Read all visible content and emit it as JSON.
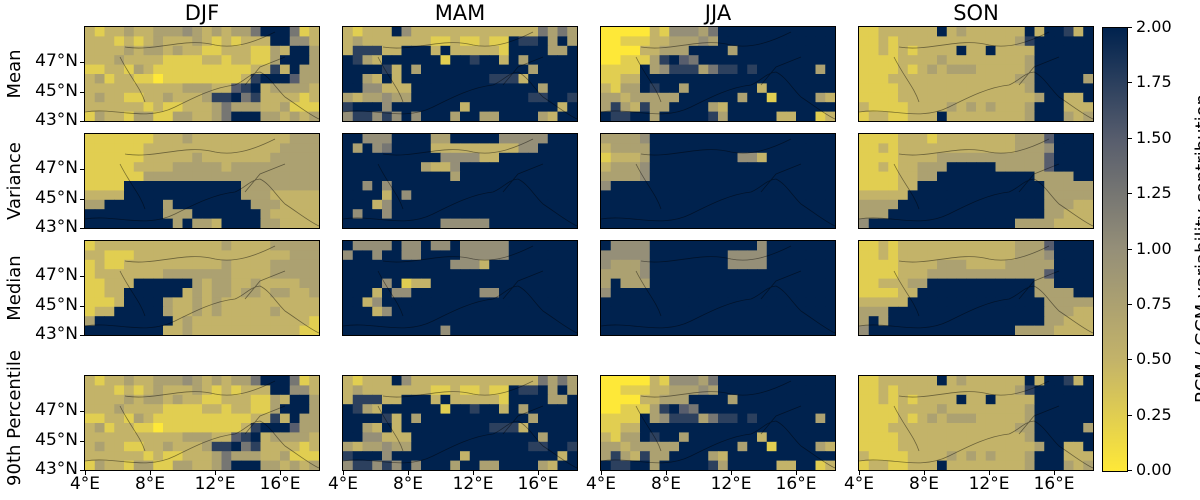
{
  "chart_data": {
    "type": "heatmap",
    "title": "",
    "columns": [
      "DJF",
      "MAM",
      "JJA",
      "SON"
    ],
    "rows": [
      "Mean",
      "Variance",
      "Median",
      "90th Percentile"
    ],
    "xlabel": "",
    "ylabel": "",
    "x_ticks": [
      "4°E",
      "8°E",
      "12°E",
      "16°E"
    ],
    "y_ticks": [
      "47°N",
      "45°N",
      "43°N"
    ],
    "colorbar": {
      "label": "RCM / GCM variability contribution",
      "ticks": [
        "0.00",
        "0.25",
        "0.50",
        "0.75",
        "1.00",
        "1.25",
        "1.50",
        "1.75",
        "2.00"
      ],
      "range": [
        0,
        2
      ],
      "colormap": "cividis_r",
      "colors": [
        "#fee838",
        "#c3b369",
        "#958f78",
        "#575d6d",
        "#00224e"
      ]
    },
    "grid_encoding": "each panel is 10 rows (north to south) x 24 cols (west to east); digit d -> value d*0.25",
    "panels": {
      "Mean": {
        "DJF": [
          "212232233343232335888512",
          "222121232223212122288442",
          "222232332322112221132883",
          "222322221111221221138883",
          "112213211111111112272833",
          "231221101111111127888633",
          "222222222233322678233332",
          "232211223222377857222212",
          "222222121122235333223111",
          "132213311332235888332323"
        ],
        "MAM": [
          "212228422222222222225353",
          "232222222112112118778383",
          "277722888282222218888338",
          "873288888818878828388888",
          "888872838888888888838888",
          "883282888888888777288888",
          "884422288888888888883888",
          "323343388888888888877887",
          "788848888888288888888828",
          "477474848883883388883288"
        ],
        "JJA": [
          "000002144435888888888888",
          "001112233343888888888888",
          "000022333888838888888888",
          "001113786588888888888888",
          "111183477735778788888838",
          "112288888888888888888888",
          "213387883888888828888888",
          "332333338888883881888832",
          "373273388883288888888888",
          "877883888887388888228812"
        ],
        "SON": [
          "112222228232222228288728",
          "112122222222222237888888",
          "112121222282282222888888",
          "111122223222222223888888",
          "111121232333222223888888",
          "111222222222222233888883",
          "111122222222222223888888",
          "111122222222222222388228",
          "211112222323232223888222",
          "122112228222222223888323"
        ]
      },
      "Variance": {
        "DJF": [
          "111111122232222222222333",
          "111111222222222222223333",
          "111111222223222222233333",
          "111112222333332333333333",
          "111111333333333333333333",
          "111188888888888833333333",
          "222288888888888833322222",
          "338888883888888883332222",
          "888888883338888888322222",
          "888888888383328888332222"
        ],
        "MAM": [
          "884448888338888844444888",
          "838458888222222222448888",
          "888888888844442288888888",
          "888888883224888888888888",
          "888888888883888888888888",
          "884848888888888888888888",
          "888828488888888888888888",
          "888248888888888888888888",
          "848848888888888888888888",
          "888888888844444888888888"
        ],
        "JJA": [
          "333348888888888888888888",
          "233338888888888888888888",
          "122238888888884428888888",
          "233348888888888888888888",
          "333348888888888888888888",
          "488888888888888888888888",
          "888888888888888888888888",
          "888888888888888888888888",
          "888888888888888888888888",
          "888888888888888888888888"
        ],
        "SON": [
          "111122212222222233368888",
          "112122222222222233348888",
          "111122223333333333368888",
          "112122333888883333368888",
          "111122338888888888333388",
          "111122888888888888833333",
          "222228888888888888833333",
          "333388888888888888833322",
          "333888888888888888833222",
          "488888888888888833332222"
        ]
      },
      "Median": {
        "DJF": [
          "122222222222223222233333",
          "221112222222222222222333",
          "121122222222223222233333",
          "122222223333333222233333",
          "112228888883233223222233",
          "112288888823233233233223",
          "111288883223232222222222",
          "122888883223232222232222",
          "388888888232222222222221",
          "888888882232222222222211"
        ],
        "MAM": [
          "844448448448444448888888",
          "488488448888444448888888",
          "888888888884442888888888",
          "888888888888888888888888",
          "888848122888888888888888",
          "888284488888884488888888",
          "882488888888888888888888",
          "888248888888888888888888",
          "888888888888888888888888",
          "888888888848888888888888"
        ],
        "JJA": [
          "844448888888888848888888",
          "444448888888844448888888",
          "433348888888844448888888",
          "333348888888888888888888",
          "383338888888888888888888",
          "488888888888888888888888",
          "888888888888888888888888",
          "888888888888888888888888",
          "888888888888888888888888",
          "888888888888888888888888"
        ],
        "SON": [
          "112122222222222233368888",
          "112122222222222233348888",
          "111122223332222333338888",
          "111122233333333333368888",
          "112223388888888888338888",
          "111122888888888888333388",
          "222228888888888888833333",
          "333888888888888888833322",
          "383888888888888888833222",
          "488888888888888833332222"
        ]
      },
      "90th Percentile": {
        "DJF": [
          "212232233343232335888512",
          "222121232223212122288442",
          "222232332322112221132883",
          "222322221111221221138883",
          "112213211111111112272833",
          "231221101111111127888633",
          "222222222233322678233332",
          "232211223222377857222212",
          "222222121122235333223111",
          "132213311332235888332323"
        ],
        "MAM": [
          "212228422222222222225353",
          "232222222112112118778383",
          "277722888282222218888338",
          "873288888818878828388888",
          "888872838888888888838888",
          "883282888888888777288888",
          "884422288888888888883888",
          "323343388888888888877887",
          "788848888888288888888828",
          "477474848883883388883288"
        ],
        "JJA": [
          "000002144435888888888888",
          "001112233343888888888888",
          "000022333888838888888888",
          "001113786588888888888888",
          "111183477735778788888838",
          "112288888888888888888888",
          "213387883888888828888888",
          "332333338888883881888832",
          "373273388883288888888888",
          "877883888887388888228812"
        ],
        "SON": [
          "112222228232222228288728",
          "112122222222222237888888",
          "112121222282282222888888",
          "111122223222222223888888",
          "111121232333222223888888",
          "111222222222222233888883",
          "111122222222222223888888",
          "111122222222222222388228",
          "211112222323232223888222",
          "122112228222222223888323"
        ]
      }
    }
  }
}
